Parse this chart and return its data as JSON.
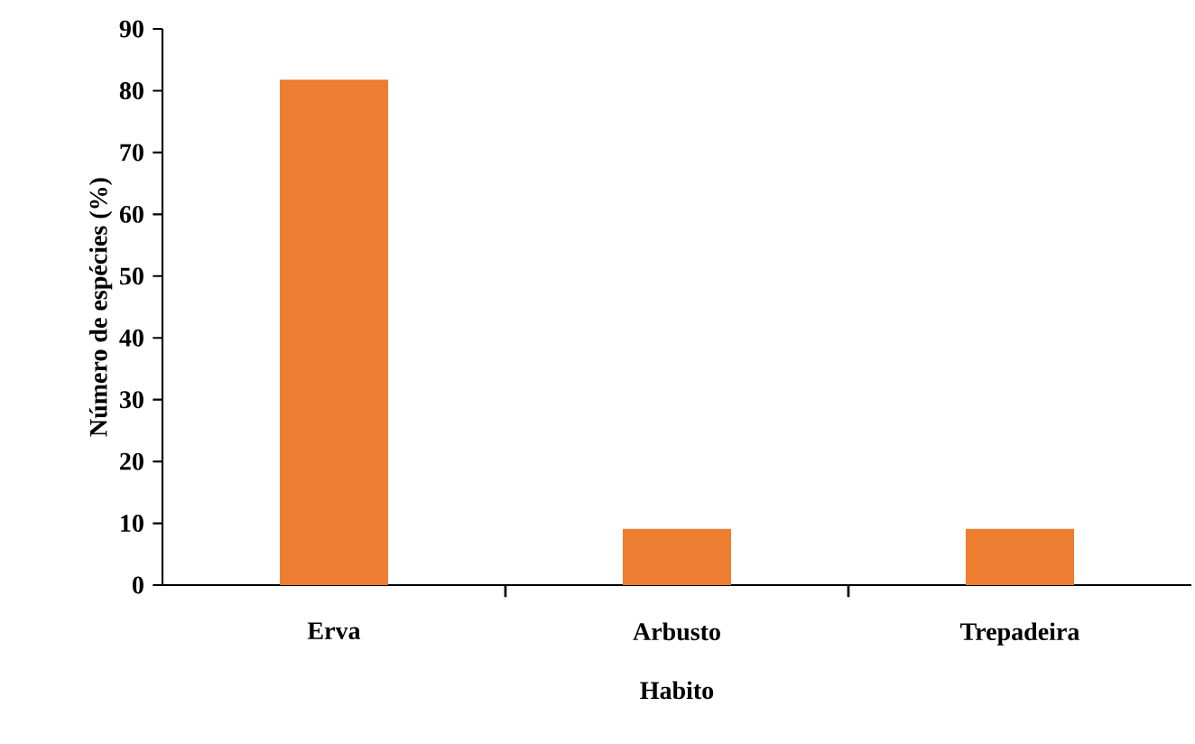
{
  "chart_data": {
    "type": "bar",
    "xlabel": "Habito",
    "ylabel": "Número de espécies (%)",
    "categories": [
      "Erva",
      "Arbusto",
      "Trepadeira"
    ],
    "values": [
      81.8,
      9.1,
      9.1
    ],
    "color": "#ed7d31",
    "ylim": [
      0,
      90
    ],
    "yticks": [
      0,
      10,
      20,
      30,
      40,
      50,
      60,
      70,
      80,
      90
    ],
    "grid": false
  }
}
